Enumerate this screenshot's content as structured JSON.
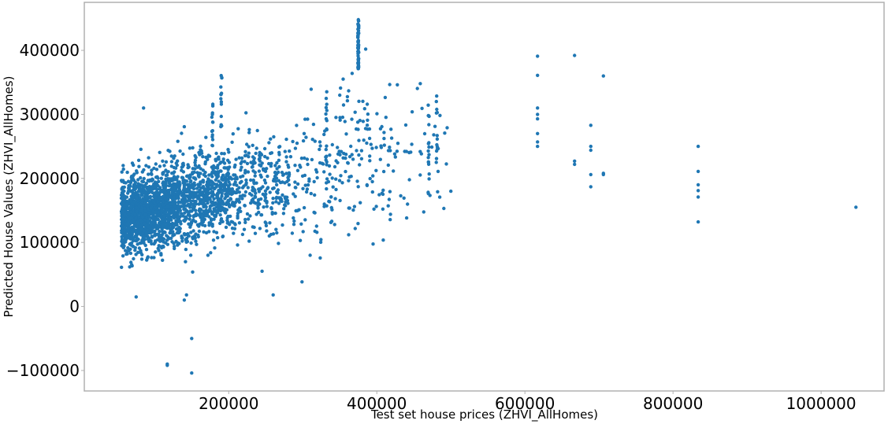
{
  "chart_data": {
    "type": "scatter",
    "title": "",
    "xlabel": "Test set house prices (ZHVI_AllHomes)",
    "ylabel": "Predicted House Values (ZHVI_AllHomes)",
    "xlim": [
      5000,
      1085000
    ],
    "ylim": [
      -132000,
      475000
    ],
    "xticks": [
      200000,
      400000,
      600000,
      800000,
      1000000
    ],
    "xtick_labels": [
      "200000",
      "400000",
      "600000",
      "800000",
      "1000000"
    ],
    "yticks": [
      -100000,
      0,
      100000,
      200000,
      300000,
      400000
    ],
    "ytick_labels": [
      "−100000",
      "0",
      "100000",
      "200000",
      "300000",
      "400000"
    ],
    "grid": false,
    "legend": null,
    "marker_color": "#1f77b4",
    "marker_size": 2.2,
    "clusters": [
      {
        "x_range": [
          55000,
          130000
        ],
        "y_mean": 148000,
        "y_sd": 30000,
        "n": 1300,
        "x_slope": 0.25
      },
      {
        "x_range": [
          130000,
          200000
        ],
        "y_mean": 170000,
        "y_sd": 33000,
        "n": 650,
        "x_slope": 0.3
      },
      {
        "x_range": [
          200000,
          280000
        ],
        "y_mean": 185000,
        "y_sd": 38000,
        "n": 300,
        "x_slope": 0.2
      },
      {
        "x_range": [
          280000,
          350000
        ],
        "y_mean": 205000,
        "y_sd": 55000,
        "n": 120,
        "x_slope": 0.3
      },
      {
        "x_range": [
          350000,
          420000
        ],
        "y_mean": 240000,
        "y_sd": 60000,
        "n": 110,
        "x_slope": 0.0
      },
      {
        "x_range": [
          420000,
          500000
        ],
        "y_mean": 230000,
        "y_sd": 50000,
        "n": 40,
        "x_slope": 0.0
      }
    ],
    "vertical_columns": [
      {
        "x": 375000,
        "y_min": 370000,
        "y_max": 450000,
        "n": 60
      },
      {
        "x": 190000,
        "y_min": 280000,
        "y_max": 365000,
        "n": 14
      },
      {
        "x": 178000,
        "y_min": 250000,
        "y_max": 322000,
        "n": 14
      },
      {
        "x": 332000,
        "y_min": 220000,
        "y_max": 340000,
        "n": 16
      },
      {
        "x": 470000,
        "y_min": 175000,
        "y_max": 315000,
        "n": 18
      },
      {
        "x": 481000,
        "y_min": 220000,
        "y_max": 335000,
        "n": 12
      }
    ],
    "points": [
      [
        75000,
        15000
      ],
      [
        117000,
        -92000
      ],
      [
        117000,
        -90000
      ],
      [
        140000,
        10000
      ],
      [
        143000,
        18000
      ],
      [
        150000,
        -50000
      ],
      [
        150000,
        -104000
      ],
      [
        260000,
        18000
      ],
      [
        310000,
        80000
      ],
      [
        245000,
        55000
      ],
      [
        85000,
        310000
      ],
      [
        385000,
        402000
      ],
      [
        500000,
        180000
      ],
      [
        440000,
        242000
      ],
      [
        362000,
        112000
      ],
      [
        350000,
        330000
      ],
      [
        617000,
        391000
      ],
      [
        617000,
        361000
      ],
      [
        617000,
        310000
      ],
      [
        617000,
        300000
      ],
      [
        617000,
        293000
      ],
      [
        617000,
        270000
      ],
      [
        617000,
        257000
      ],
      [
        617000,
        250000
      ],
      [
        667000,
        392000
      ],
      [
        667000,
        227000
      ],
      [
        667000,
        222000
      ],
      [
        689000,
        283000
      ],
      [
        689000,
        250000
      ],
      [
        689000,
        244000
      ],
      [
        689000,
        206000
      ],
      [
        689000,
        187000
      ],
      [
        706000,
        360000
      ],
      [
        706000,
        208000
      ],
      [
        706000,
        206000
      ],
      [
        834000,
        250000
      ],
      [
        834000,
        211000
      ],
      [
        834000,
        190000
      ],
      [
        834000,
        181000
      ],
      [
        834000,
        171000
      ],
      [
        834000,
        132000
      ],
      [
        1047000,
        155000
      ]
    ]
  },
  "axes": {
    "x_label": "Test set house prices (ZHVI_AllHomes)",
    "y_label": "Predicted House Values (ZHVI_AllHomes)"
  }
}
